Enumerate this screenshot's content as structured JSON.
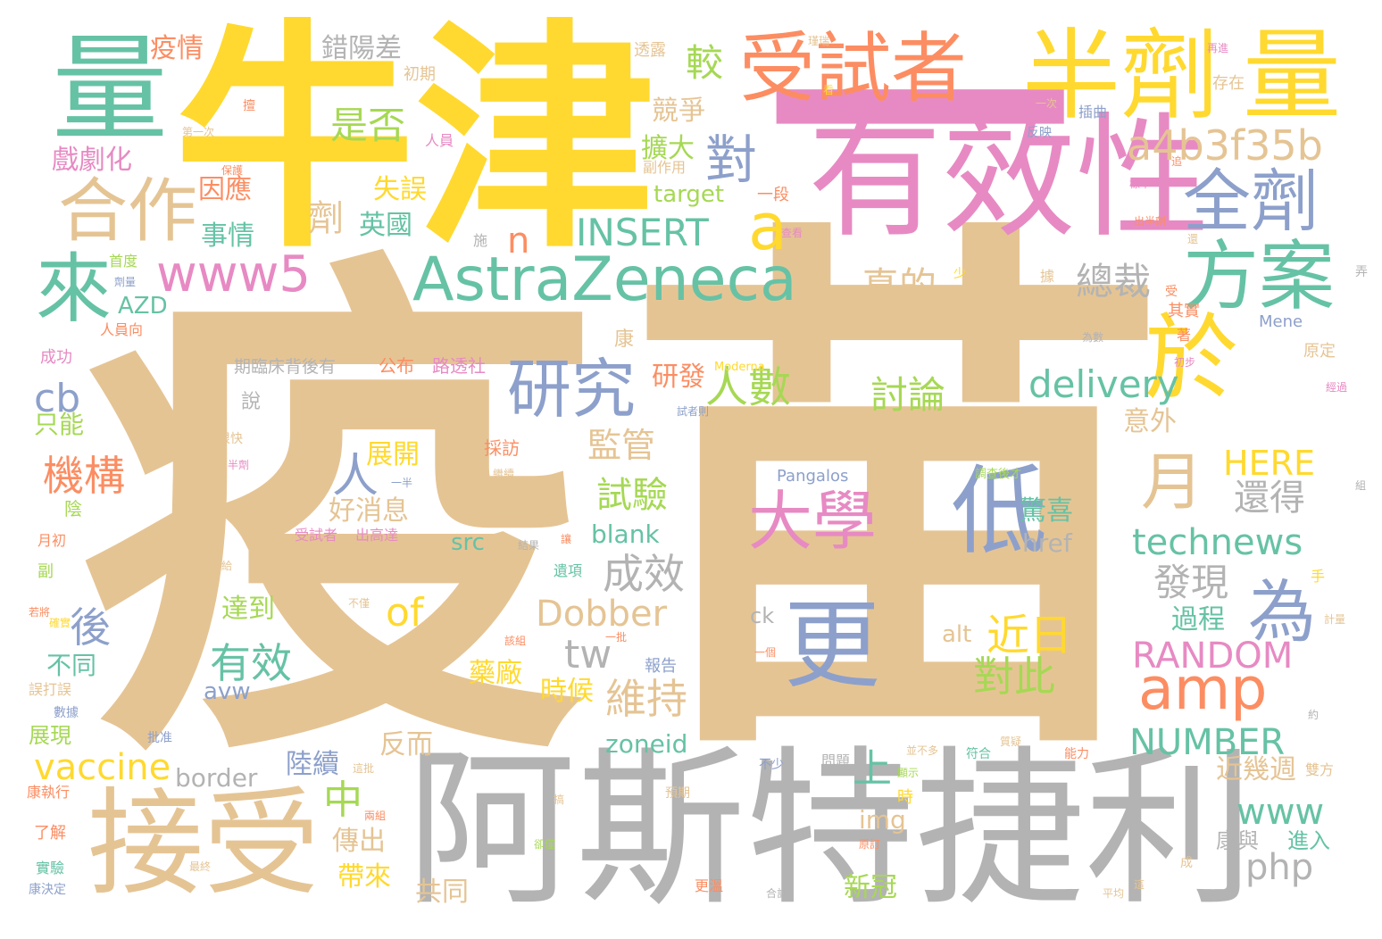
{
  "palette": {
    "tan": "#e5c494",
    "yellow": "#ffd92f",
    "pink": "#e78ac3",
    "teal": "#66c2a5",
    "gray": "#b3b3b3",
    "blue": "#8da0cb",
    "orange": "#fc8d62",
    "green": "#a6d854"
  },
  "words": [
    {
      "text": "疫",
      "color": "#e5c494"
    },
    {
      "text": "苗",
      "color": "#e5c494"
    },
    {
      "text": "牛津",
      "color": "#ffd92f"
    },
    {
      "text": "一",
      "color": "#e78ac3"
    },
    {
      "text": "阿斯特捷利",
      "color": "#b3b3b3"
    },
    {
      "text": "有效性",
      "color": "#e78ac3"
    },
    {
      "text": "量",
      "color": "#66c2a5"
    },
    {
      "text": "受試者",
      "color": "#fc8d62"
    },
    {
      "text": "半劑",
      "color": "#ffd92f"
    },
    {
      "text": "量",
      "color": "#ffd92f"
    },
    {
      "text": "接受",
      "color": "#e5c494"
    },
    {
      "text": "AstraZeneca",
      "color": "#66c2a5"
    },
    {
      "text": "於",
      "color": "#ffd92f"
    },
    {
      "text": "研究",
      "color": "#8da0cb"
    },
    {
      "text": "來",
      "color": "#66c2a5"
    },
    {
      "text": "方案",
      "color": "#66c2a5"
    },
    {
      "text": "全劑",
      "color": "#8da0cb"
    },
    {
      "text": "合作",
      "color": "#e5c494"
    },
    {
      "text": "www5",
      "color": "#e78ac3"
    },
    {
      "text": "amp",
      "color": "#fc8d62"
    },
    {
      "text": "大學",
      "color": "#e78ac3"
    },
    {
      "text": "低",
      "color": "#8da0cb"
    },
    {
      "text": "更",
      "color": "#8da0cb"
    },
    {
      "text": "為",
      "color": "#8da0cb"
    },
    {
      "text": "對",
      "color": "#8da0cb"
    },
    {
      "text": "a",
      "color": "#ffd92f"
    },
    {
      "text": "a4b3f35b",
      "color": "#e5c494"
    },
    {
      "text": "delivery",
      "color": "#66c2a5"
    },
    {
      "text": "INSERT",
      "color": "#66c2a5"
    },
    {
      "text": "technews",
      "color": "#66c2a5"
    },
    {
      "text": "RANDOM",
      "color": "#e78ac3"
    },
    {
      "text": "NUMBER",
      "color": "#66c2a5"
    },
    {
      "text": "HERE",
      "color": "#ffd92f"
    },
    {
      "text": "Dobber",
      "color": "#e5c494"
    },
    {
      "text": "vaccine",
      "color": "#ffd92f"
    },
    {
      "text": "www",
      "color": "#66c2a5"
    },
    {
      "text": "php",
      "color": "#b3b3b3"
    },
    {
      "text": "月",
      "color": "#e5c494"
    },
    {
      "text": "人數",
      "color": "#a6d854"
    },
    {
      "text": "監管",
      "color": "#e5c494"
    },
    {
      "text": "機構",
      "color": "#fc8d62"
    },
    {
      "text": "是否",
      "color": "#a6d854"
    },
    {
      "text": "較",
      "color": "#a6d854"
    },
    {
      "text": "總裁",
      "color": "#b3b3b3"
    },
    {
      "text": "真的",
      "color": "#e5c494"
    },
    {
      "text": "討論",
      "color": "#a6d854"
    },
    {
      "text": "試驗",
      "color": "#a6d854"
    },
    {
      "text": "成效",
      "color": "#b3b3b3"
    },
    {
      "text": "還得",
      "color": "#b3b3b3"
    },
    {
      "text": "發現",
      "color": "#b3b3b3"
    },
    {
      "text": "近日",
      "color": "#ffd92f"
    },
    {
      "text": "對此",
      "color": "#a6d854"
    },
    {
      "text": "維持",
      "color": "#e5c494"
    },
    {
      "text": "有效",
      "color": "#66c2a5"
    },
    {
      "text": "cb",
      "color": "#8da0cb"
    },
    {
      "text": "of",
      "color": "#ffd92f"
    },
    {
      "text": "tw",
      "color": "#b3b3b3"
    },
    {
      "text": "n",
      "color": "#fc8d62"
    },
    {
      "text": "人",
      "color": "#8da0cb"
    },
    {
      "text": "後",
      "color": "#8da0cb"
    },
    {
      "text": "中",
      "color": "#a6d854"
    },
    {
      "text": "上",
      "color": "#66c2a5"
    },
    {
      "text": "劑",
      "color": "#e5c494"
    },
    {
      "text": "疫情",
      "color": "#fc8d62"
    },
    {
      "text": "錯陽差",
      "color": "#b3b3b3"
    },
    {
      "text": "失誤",
      "color": "#ffd92f"
    },
    {
      "text": "英國",
      "color": "#66c2a5"
    },
    {
      "text": "擴大",
      "color": "#a6d854"
    },
    {
      "text": "競爭",
      "color": "#e5c494"
    },
    {
      "text": "因應",
      "color": "#fc8d62"
    },
    {
      "text": "事情",
      "color": "#66c2a5"
    },
    {
      "text": "戲劇化",
      "color": "#e78ac3"
    },
    {
      "text": "研發",
      "color": "#fc8d62"
    },
    {
      "text": "展開",
      "color": "#ffd92f"
    },
    {
      "text": "好消息",
      "color": "#e5c494"
    },
    {
      "text": "驚喜",
      "color": "#66c2a5"
    },
    {
      "text": "過程",
      "color": "#66c2a5"
    },
    {
      "text": "意外",
      "color": "#e5c494"
    },
    {
      "text": "藥廠",
      "color": "#ffd92f"
    },
    {
      "text": "時候",
      "color": "#ffd92f"
    },
    {
      "text": "反而",
      "color": "#e5c494"
    },
    {
      "text": "陸續",
      "color": "#8da0cb"
    },
    {
      "text": "傳出",
      "color": "#e5c494"
    },
    {
      "text": "帶來",
      "color": "#ffd92f"
    },
    {
      "text": "共同",
      "color": "#e5c494"
    },
    {
      "text": "新冠",
      "color": "#a6d854"
    },
    {
      "text": "近幾週",
      "color": "#e5c494"
    },
    {
      "text": "康與",
      "color": "#b3b3b3"
    },
    {
      "text": "進入",
      "color": "#66c2a5"
    },
    {
      "text": "達到",
      "color": "#a6d854"
    },
    {
      "text": "不同",
      "color": "#66c2a5"
    },
    {
      "text": "只能",
      "color": "#a6d854"
    },
    {
      "text": "展現",
      "color": "#a6d854"
    },
    {
      "text": "zoneid",
      "color": "#66c2a5"
    },
    {
      "text": "border",
      "color": "#b3b3b3"
    },
    {
      "text": "img",
      "color": "#e5c494"
    },
    {
      "text": "blank",
      "color": "#66c2a5"
    },
    {
      "text": "src",
      "color": "#66c2a5"
    },
    {
      "text": "href",
      "color": "#b3b3b3"
    },
    {
      "text": "target",
      "color": "#a6d854"
    },
    {
      "text": "AZD",
      "color": "#66c2a5"
    },
    {
      "text": "avw",
      "color": "#8da0cb"
    },
    {
      "text": "alt",
      "color": "#e5c494"
    },
    {
      "text": "ck",
      "color": "#b3b3b3"
    },
    {
      "text": "Pangalos",
      "color": "#8da0cb"
    },
    {
      "text": "Mene",
      "color": "#8da0cb"
    },
    {
      "text": "Moderna",
      "color": "#ffd92f"
    },
    {
      "text": "期臨床背後有",
      "color": "#b3b3b3"
    },
    {
      "text": "公布",
      "color": "#fc8d62"
    },
    {
      "text": "路透社",
      "color": "#e78ac3"
    },
    {
      "text": "說",
      "color": "#b3b3b3"
    },
    {
      "text": "康",
      "color": "#e5c494"
    },
    {
      "text": "採訪",
      "color": "#fc8d62"
    },
    {
      "text": "報告",
      "color": "#8da0cb"
    },
    {
      "text": "初期",
      "color": "#e5c494"
    },
    {
      "text": "透露",
      "color": "#e5c494"
    },
    {
      "text": "存在",
      "color": "#e5c494"
    },
    {
      "text": "插曲",
      "color": "#8da0cb"
    },
    {
      "text": "反映",
      "color": "#8da0cb"
    },
    {
      "text": "一段",
      "color": "#fc8d62"
    },
    {
      "text": "副作用",
      "color": "#e5c494"
    },
    {
      "text": "其實",
      "color": "#fc8d62"
    },
    {
      "text": "原定",
      "color": "#e5c494"
    },
    {
      "text": "成功",
      "color": "#e78ac3"
    },
    {
      "text": "首度",
      "color": "#a6d854"
    },
    {
      "text": "人員向",
      "color": "#fc8d62"
    },
    {
      "text": "人員",
      "color": "#e78ac3"
    },
    {
      "text": "陰",
      "color": "#a6d854"
    },
    {
      "text": "月初",
      "color": "#fc8d62"
    },
    {
      "text": "受試者",
      "color": "#e78ac3"
    },
    {
      "text": "出高達",
      "color": "#e78ac3"
    },
    {
      "text": "誤打誤",
      "color": "#e5c494"
    },
    {
      "text": "康執行",
      "color": "#fc8d62"
    },
    {
      "text": "了解",
      "color": "#fc8d62"
    },
    {
      "text": "實驗",
      "color": "#66c2a5"
    },
    {
      "text": "康決定",
      "color": "#8da0cb"
    },
    {
      "text": "更溫",
      "color": "#fc8d62"
    },
    {
      "text": "雙方",
      "color": "#e5c494"
    },
    {
      "text": "問題",
      "color": "#b3b3b3"
    },
    {
      "text": "很快",
      "color": "#e5c494"
    },
    {
      "text": "遺項",
      "color": "#66c2a5"
    },
    {
      "text": "副",
      "color": "#a6d854"
    },
    {
      "text": "手",
      "color": "#ffd92f"
    },
    {
      "text": "符合",
      "color": "#66c2a5"
    },
    {
      "text": "能力",
      "color": "#fc8d62"
    },
    {
      "text": "顯示",
      "color": "#a6d854"
    },
    {
      "text": "不少",
      "color": "#8da0cb"
    },
    {
      "text": "預期",
      "color": "#e5c494"
    },
    {
      "text": "合計",
      "color": "#b3b3b3"
    },
    {
      "text": "平均",
      "color": "#e5c494"
    },
    {
      "text": "原訂",
      "color": "#fc8d62"
    },
    {
      "text": "時",
      "color": "#ffd92f"
    },
    {
      "text": "追",
      "color": "#fc8d62"
    },
    {
      "text": "施",
      "color": "#b3b3b3"
    },
    {
      "text": "組",
      "color": "#b3b3b3"
    },
    {
      "text": "少",
      "color": "#ffd92f"
    },
    {
      "text": "弄",
      "color": "#b3b3b3"
    },
    {
      "text": "受",
      "color": "#fc8d62"
    },
    {
      "text": "據",
      "color": "#e5c494"
    },
    {
      "text": "著",
      "color": "#fc8d62"
    },
    {
      "text": "成",
      "color": "#e5c494"
    },
    {
      "text": "這",
      "color": "#e5c494"
    },
    {
      "text": "一次",
      "color": "#e5c494"
    },
    {
      "text": "第一次",
      "color": "#e5c494"
    },
    {
      "text": "批准",
      "color": "#8da0cb"
    },
    {
      "text": "一半",
      "color": "#8da0cb"
    },
    {
      "text": "一批",
      "color": "#fc8d62"
    },
    {
      "text": "一個",
      "color": "#fc8d62"
    },
    {
      "text": "半劑",
      "color": "#e78ac3"
    },
    {
      "text": "結果",
      "color": "#b3b3b3"
    },
    {
      "text": "繼續",
      "color": "#e5c494"
    },
    {
      "text": "調查後才",
      "color": "#a6d854"
    },
    {
      "text": "為數",
      "color": "#b3b3b3"
    },
    {
      "text": "經過",
      "color": "#e78ac3"
    },
    {
      "text": "計量",
      "color": "#e5c494"
    },
    {
      "text": "約",
      "color": "#b3b3b3"
    },
    {
      "text": "數據",
      "color": "#8da0cb"
    },
    {
      "text": "若將",
      "color": "#fc8d62"
    },
    {
      "text": "最終",
      "color": "#e5c494"
    },
    {
      "text": "卻僅",
      "color": "#a6d854"
    },
    {
      "text": "搞",
      "color": "#e5c494"
    },
    {
      "text": "兩組",
      "color": "#fc8d62"
    },
    {
      "text": "這批",
      "color": "#e5c494"
    },
    {
      "text": "不僅",
      "color": "#e5c494"
    },
    {
      "text": "該組",
      "color": "#fc8d62"
    },
    {
      "text": "讓",
      "color": "#fc8d62"
    },
    {
      "text": "給",
      "color": "#e5c494"
    },
    {
      "text": "質疑",
      "color": "#e5c494"
    },
    {
      "text": "並不多",
      "color": "#e5c494"
    },
    {
      "text": "初步",
      "color": "#e78ac3"
    },
    {
      "text": "試者則",
      "color": "#8da0cb"
    },
    {
      "text": "標準",
      "color": "#e78ac3"
    },
    {
      "text": "出半劑",
      "color": "#fc8d62"
    },
    {
      "text": "還",
      "color": "#e5c494"
    },
    {
      "text": "瑾瑞",
      "color": "#e5c494"
    },
    {
      "text": "看",
      "color": "#ffd92f"
    },
    {
      "text": "擅",
      "color": "#fc8d62"
    },
    {
      "text": "保護",
      "color": "#fc8d62"
    },
    {
      "text": "查看",
      "color": "#e78ac3"
    },
    {
      "text": "劑量",
      "color": "#8da0cb"
    },
    {
      "text": "確實",
      "color": "#ffd92f"
    },
    {
      "text": "再進",
      "color": "#e78ac3"
    }
  ]
}
